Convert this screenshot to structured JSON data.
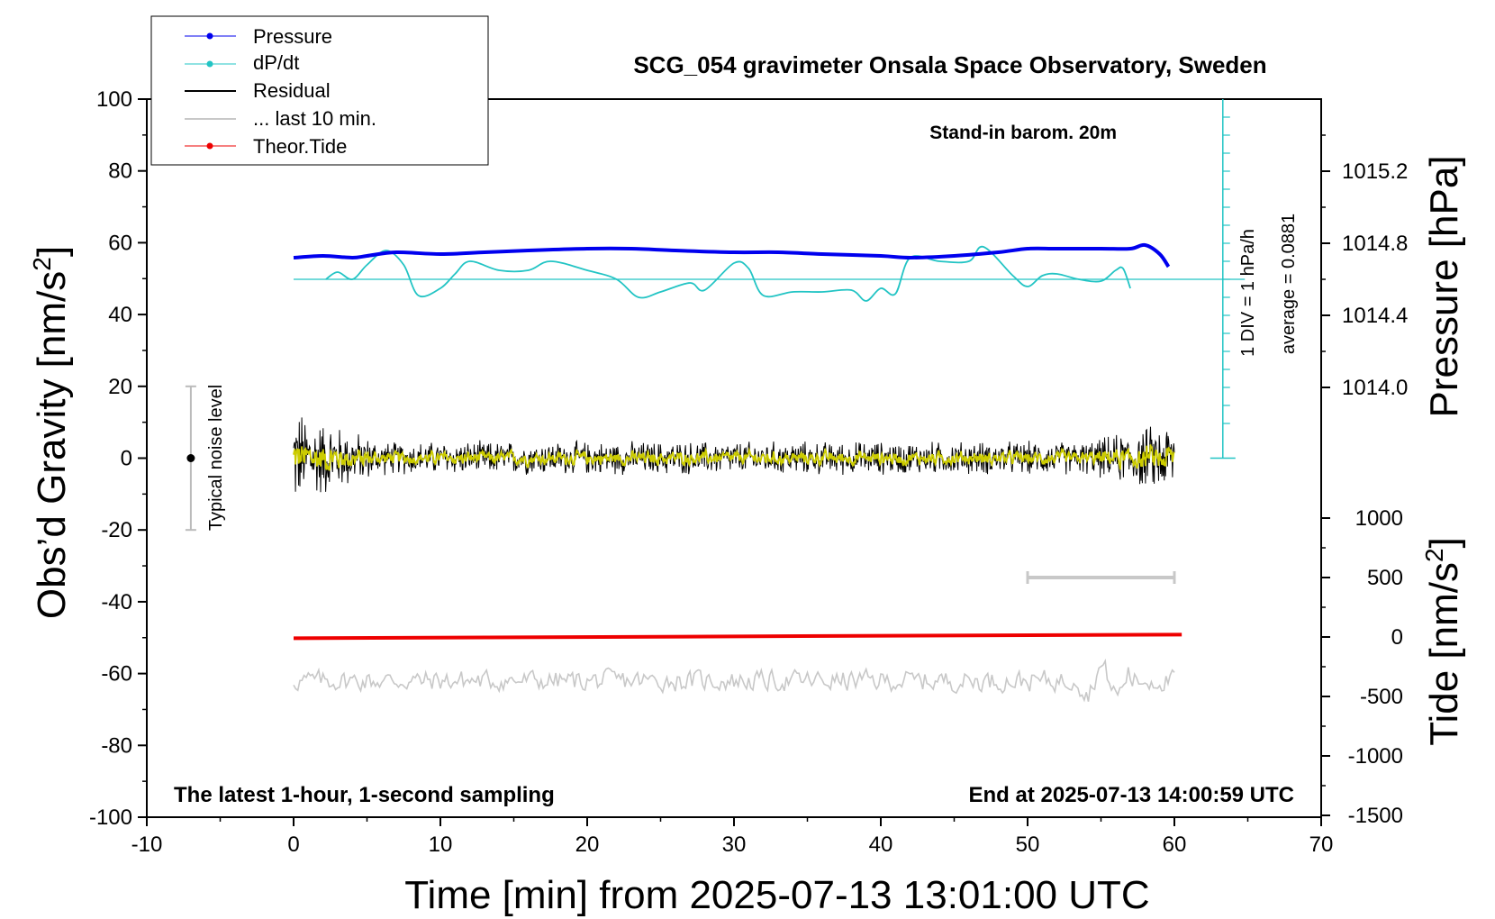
{
  "chart_data": {
    "type": "line",
    "title": "SCG_054 gravimeter Onsala Space Observatory, Sweden",
    "xlabel": "Time [min] from 2025-07-13 13:01:00 UTC",
    "ylabel_main": "Obs’d Gravity [nm/s",
    "ylabel_pressure": "Pressure [hPa]",
    "ylabel_tide": "Tide [nm/s",
    "unit_sup": "2",
    "unit_close": "]",
    "xlim": [
      -10,
      70
    ],
    "ylim": [
      -100,
      100
    ],
    "xticks": [
      "-10",
      "0",
      "10",
      "20",
      "30",
      "40",
      "50",
      "60",
      "70"
    ],
    "yticks": [
      "100",
      "80",
      "60",
      "40",
      "20",
      "0",
      "-20",
      "-40",
      "-60",
      "-80",
      "-100"
    ],
    "pressure_axis": {
      "ticks": [
        "1015.2",
        "1014.8",
        "1014.4",
        "1014.0"
      ],
      "values": [
        1015.2,
        1014.8,
        1014.4,
        1014.0
      ]
    },
    "tide_axis": {
      "ticks": [
        "1000",
        "500",
        "0",
        "-500",
        "-1000",
        "-1500"
      ],
      "values": [
        1000,
        500,
        0,
        -500,
        -1000,
        -1500
      ]
    },
    "legend": [
      "Pressure",
      "dP/dt",
      "Residual",
      "... last 10 min.",
      "Theor.Tide"
    ],
    "annotations": {
      "barom": "Stand-in barom. 20m",
      "div": "1 DIV = 1 hPa/h",
      "average": "average = 0.0881",
      "noise": "Typical noise level",
      "bottom_left": "The latest 1-hour, 1-second sampling",
      "bottom_right": "End at 2025-07-13 14:00:59 UTC"
    },
    "colors": {
      "pressure": "#0000ee",
      "dpdt": "#22c4c4",
      "residual": "#000000",
      "last10": "#c8c8c8",
      "tide": "#ee0000",
      "smooth": "#cccc00"
    },
    "series": [
      {
        "name": "Pressure",
        "unit": "hPa",
        "x": [
          0,
          2,
          4,
          5,
          7,
          10,
          13,
          16,
          20,
          23,
          26,
          30,
          33,
          36,
          40,
          42,
          45,
          48,
          50,
          52,
          55,
          57,
          58,
          59,
          59.6
        ],
        "values": [
          1014.72,
          1014.73,
          1014.72,
          1014.73,
          1014.75,
          1014.74,
          1014.75,
          1014.76,
          1014.77,
          1014.77,
          1014.76,
          1014.75,
          1014.75,
          1014.74,
          1014.73,
          1014.72,
          1014.73,
          1014.75,
          1014.77,
          1014.77,
          1014.77,
          1014.77,
          1014.79,
          1014.74,
          1014.67
        ]
      },
      {
        "name": "dP/dt",
        "unit": "div",
        "x": [
          2.2,
          3,
          4,
          5,
          6.3,
          7.5,
          8.5,
          10,
          11,
          12,
          14,
          16,
          17.5,
          20,
          22,
          23.5,
          25,
          27,
          28,
          30,
          31,
          32,
          34,
          36,
          38,
          39,
          40,
          41,
          42,
          44,
          46,
          47,
          49,
          50,
          51,
          52,
          53.5,
          55,
          56,
          56.5,
          57
        ],
        "values": [
          0.0,
          0.4,
          0.0,
          0.8,
          1.6,
          0.8,
          -0.9,
          -0.5,
          0.3,
          1.0,
          0.5,
          0.5,
          1.0,
          0.5,
          0.0,
          -1.0,
          -0.7,
          -0.2,
          -0.6,
          0.9,
          0.6,
          -0.9,
          -0.7,
          -0.7,
          -0.6,
          -1.2,
          -0.5,
          -0.8,
          1.2,
          1.0,
          1.0,
          1.8,
          0.2,
          -0.4,
          0.2,
          0.3,
          0.0,
          -0.1,
          0.5,
          0.6,
          -0.5
        ]
      },
      {
        "name": "Residual",
        "unit": "nm/s^2",
        "x_range": [
          0,
          60
        ],
        "center": 0,
        "amplitude_start": 12,
        "amplitude_mid": 4,
        "amplitude_end": 9
      },
      {
        "name": "... last 10 min.",
        "unit": "nm/s^2",
        "x_range": [
          0,
          60
        ],
        "center": -62,
        "amplitude": 4,
        "min": -74,
        "max": -53
      },
      {
        "name": "Theor.Tide",
        "unit": "nm/s^2",
        "x": [
          0,
          60.5
        ],
        "values": [
          -10,
          20
        ]
      }
    ],
    "noise_bar": {
      "x": -7,
      "y_from": -20,
      "y_to": 20
    },
    "last10_bar": {
      "x_from": 50,
      "x_to": 60,
      "tide_value": 500
    }
  }
}
